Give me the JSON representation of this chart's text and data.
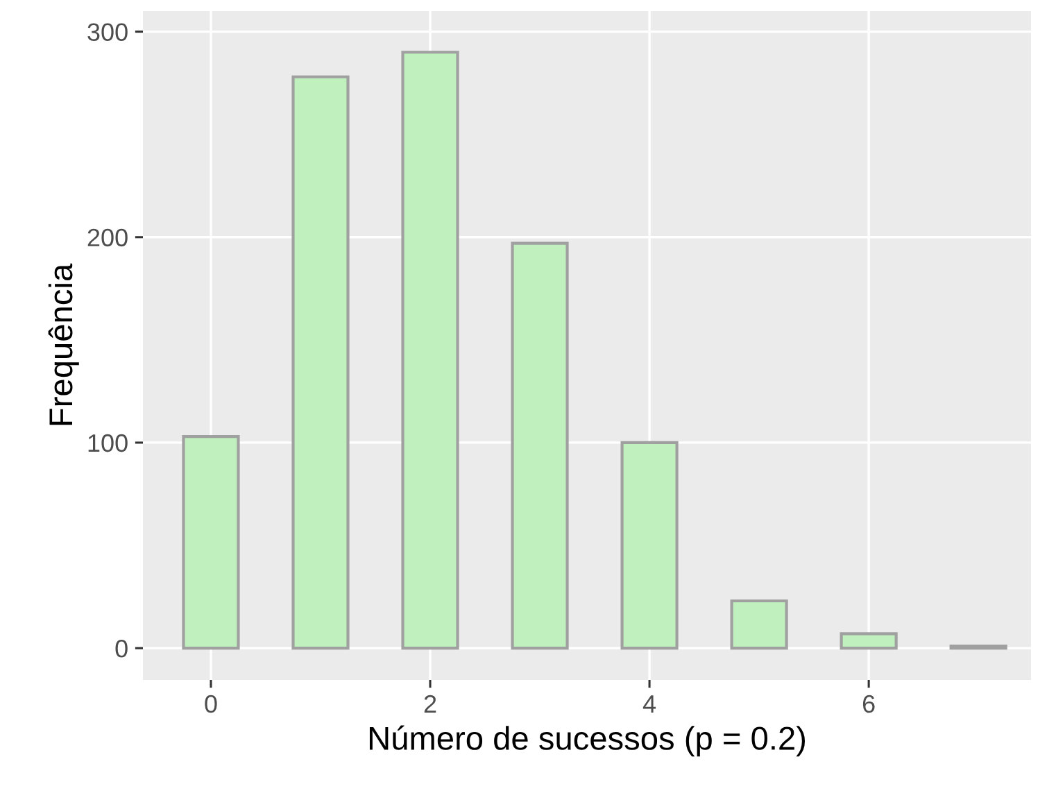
{
  "chart_data": {
    "type": "histogram",
    "xlabel": "Número de sucessos (p = 0.2)",
    "ylabel": "Frequência",
    "bins": [
      -0.25,
      0.25,
      0.75,
      1.25,
      1.75,
      2.25,
      2.75,
      3.25,
      3.75,
      4.25,
      4.75,
      5.25,
      5.75,
      6.25,
      6.75,
      7.25
    ],
    "values": [
      103,
      0,
      278,
      0,
      290,
      0,
      197,
      0,
      100,
      0,
      23,
      0,
      7,
      0,
      1
    ],
    "color": "#bff0bd",
    "xlim": [
      -0.62,
      7.48
    ],
    "ylim": [
      -15.5,
      310
    ],
    "xticks": [
      0,
      2,
      4,
      6
    ],
    "yticks": [
      0,
      100,
      200,
      300
    ],
    "grid": true
  }
}
